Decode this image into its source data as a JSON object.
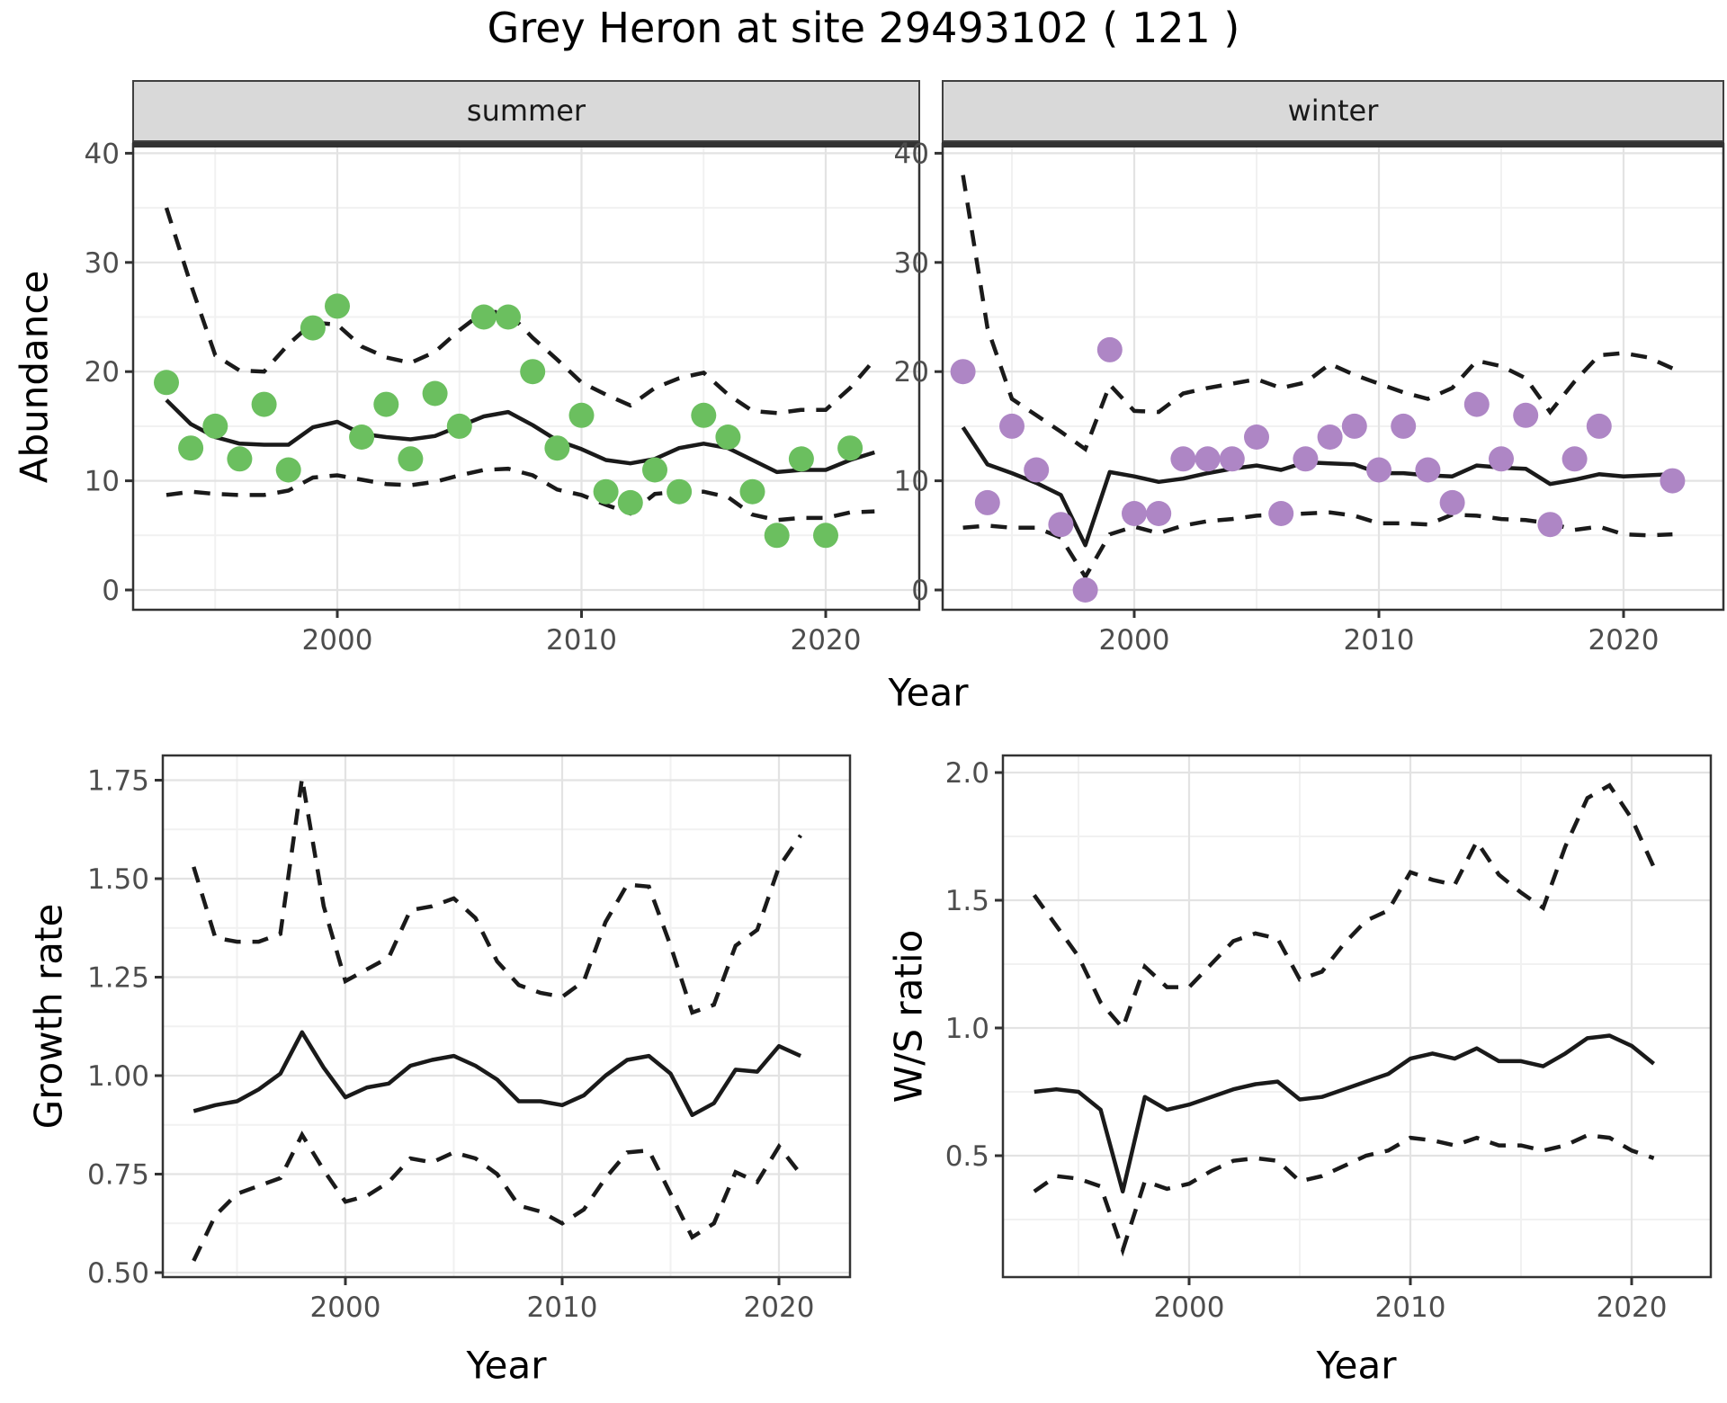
{
  "title": "Grey Heron at site 29493102 ( 121 )",
  "axes": {
    "abundance_label": "Abundance",
    "year_label_top": "Year",
    "year_label_growth": "Year",
    "year_label_ws": "Year",
    "growth_label": "Growth rate",
    "ws_label": "W/S ratio"
  },
  "facets": {
    "summer": "summer",
    "winter": "winter"
  },
  "colors": {
    "summer_points": "#6BBF5F",
    "winter_points": "#AE86C5",
    "line": "#1A1A1A",
    "strip_fill": "#D9D9D9",
    "strip_border": "#404040",
    "panel_border": "#333333",
    "grid_major": "#E3E3E3",
    "grid_minor": "#F1F1F1",
    "tick_text": "#4D4D4D"
  },
  "chart_data": [
    {
      "id": "abundance-summer",
      "type": "scatter",
      "facet": "summer",
      "xlabel": "Year",
      "ylabel": "Abundance",
      "xlim": [
        1991.6,
        2023.8
      ],
      "ylim": [
        -1.8,
        40.9
      ],
      "xticks": [
        2000,
        2010,
        2020
      ],
      "xticks_minor": [
        1995,
        2005,
        2015
      ],
      "yticks": [
        0,
        10,
        20,
        30,
        40
      ],
      "ytick_labels": [
        "0",
        "10",
        "20",
        "30",
        "40"
      ],
      "yticks_minor": [
        5,
        15,
        25,
        35
      ],
      "point_color": "#6BBF5F",
      "points": {
        "years": [
          1993,
          1994,
          1995,
          1996,
          1997,
          1998,
          1999,
          2000,
          2001,
          2002,
          2003,
          2004,
          2005,
          2006,
          2007,
          2008,
          2009,
          2010,
          2011,
          2012,
          2013,
          2014,
          2015,
          2016,
          2017,
          2018,
          2019,
          2020,
          2021
        ],
        "values": [
          19,
          13,
          15,
          12,
          17,
          11,
          24,
          26,
          14,
          17,
          12,
          18,
          15,
          25,
          25,
          20,
          13,
          16,
          9,
          8,
          11,
          9,
          16,
          14,
          9,
          5,
          12,
          5,
          13
        ]
      },
      "lines": {
        "years": [
          1993,
          1994,
          1995,
          1996,
          1997,
          1998,
          1999,
          2000,
          2001,
          2002,
          2003,
          2004,
          2005,
          2006,
          2007,
          2008,
          2009,
          2010,
          2011,
          2012,
          2013,
          2014,
          2015,
          2016,
          2017,
          2018,
          2019,
          2020,
          2021,
          2022
        ],
        "fit": [
          17.4,
          15.2,
          14.0,
          13.4,
          13.3,
          13.3,
          14.9,
          15.4,
          14.3,
          14.0,
          13.8,
          14.1,
          15.0,
          15.9,
          16.3,
          15.1,
          13.7,
          12.9,
          11.9,
          11.6,
          12.0,
          13.0,
          13.4,
          13.0,
          11.9,
          10.8,
          11.0,
          11.0,
          11.9,
          12.6
        ],
        "upper": [
          35.0,
          28.0,
          21.5,
          20.1,
          20.0,
          22.5,
          24.5,
          24.3,
          22.3,
          21.3,
          20.8,
          21.8,
          23.8,
          25.5,
          25.4,
          23.1,
          21.1,
          19.0,
          17.9,
          16.9,
          18.5,
          19.4,
          19.9,
          17.9,
          16.4,
          16.2,
          16.5,
          16.5,
          18.5,
          21.1
        ],
        "lower": [
          8.7,
          9.0,
          8.8,
          8.7,
          8.7,
          9.1,
          10.3,
          10.5,
          10.1,
          9.7,
          9.6,
          9.9,
          10.5,
          11.0,
          11.1,
          10.5,
          9.2,
          8.7,
          7.8,
          7.0,
          8.8,
          9.0,
          9.0,
          8.5,
          6.9,
          6.4,
          6.6,
          6.6,
          7.1,
          7.2
        ]
      }
    },
    {
      "id": "abundance-winter",
      "type": "scatter",
      "facet": "winter",
      "xlabel": "Year",
      "ylabel": "Abundance",
      "xlim": [
        1991.6,
        2023.9
      ],
      "ylim": [
        -1.8,
        40.9
      ],
      "xticks": [
        2000,
        2010,
        2020
      ],
      "xticks_minor": [
        1995,
        2005,
        2015
      ],
      "yticks": [
        0,
        10,
        20,
        30,
        40
      ],
      "ytick_labels": [
        "0",
        "10",
        "20",
        "30",
        "40"
      ],
      "yticks_minor": [
        5,
        15,
        25,
        35
      ],
      "point_color": "#AE86C5",
      "points": {
        "years": [
          1993,
          1994,
          1995,
          1996,
          1997,
          1998,
          1999,
          2000,
          2001,
          2002,
          2003,
          2004,
          2005,
          2006,
          2007,
          2008,
          2009,
          2010,
          2011,
          2012,
          2013,
          2014,
          2015,
          2016,
          2017,
          2018,
          2019,
          2022
        ],
        "values": [
          20,
          8,
          15,
          11,
          6,
          0,
          22,
          7,
          7,
          12,
          12,
          12,
          14,
          7,
          12,
          14,
          15,
          11,
          15,
          11,
          8,
          17,
          12,
          16,
          6,
          12,
          15,
          10
        ]
      },
      "lines": {
        "years": [
          1993,
          1994,
          1995,
          1996,
          1997,
          1998,
          1999,
          2000,
          2001,
          2002,
          2003,
          2004,
          2005,
          2006,
          2007,
          2008,
          2009,
          2010,
          2011,
          2012,
          2013,
          2014,
          2015,
          2016,
          2017,
          2018,
          2019,
          2020,
          2021,
          2022
        ],
        "fit": [
          14.9,
          11.5,
          10.7,
          9.8,
          8.7,
          4.1,
          10.8,
          10.4,
          9.9,
          10.2,
          10.7,
          11.1,
          11.4,
          11.0,
          11.7,
          11.6,
          11.5,
          10.7,
          10.7,
          10.5,
          10.4,
          11.4,
          11.2,
          11.1,
          9.7,
          10.1,
          10.6,
          10.4,
          10.5,
          10.6
        ],
        "upper": [
          38.0,
          24.0,
          17.5,
          16.0,
          14.5,
          12.9,
          18.8,
          16.4,
          16.3,
          18.0,
          18.5,
          18.9,
          19.3,
          18.5,
          19.0,
          20.7,
          19.7,
          18.9,
          18.1,
          17.5,
          18.5,
          21.0,
          20.5,
          19.4,
          16.3,
          19.1,
          21.5,
          21.7,
          21.3,
          20.3
        ],
        "lower": [
          5.7,
          5.9,
          5.7,
          5.7,
          4.8,
          1.2,
          5.1,
          5.8,
          5.2,
          5.9,
          6.3,
          6.5,
          6.8,
          6.9,
          7.0,
          7.1,
          6.8,
          6.1,
          6.1,
          6.0,
          6.9,
          6.8,
          6.5,
          6.4,
          6.1,
          5.5,
          5.8,
          5.1,
          5.0,
          5.1
        ]
      }
    },
    {
      "id": "growth-rate",
      "type": "line",
      "xlabel": "Year",
      "ylabel": "Growth rate",
      "xlim": [
        1991.6,
        2023.3
      ],
      "ylim": [
        0.49,
        1.81
      ],
      "xticks": [
        2000,
        2010,
        2020
      ],
      "xticks_minor": [
        1995,
        2005,
        2015
      ],
      "yticks": [
        0.5,
        0.75,
        1.0,
        1.25,
        1.5,
        1.75
      ],
      "ytick_labels": [
        "0.50",
        "0.75",
        "1.00",
        "1.25",
        "1.50",
        "1.75"
      ],
      "yticks_minor": [
        0.625,
        0.875,
        1.125,
        1.375,
        1.625
      ],
      "lines": {
        "years": [
          1993,
          1994,
          1995,
          1996,
          1997,
          1998,
          1999,
          2000,
          2001,
          2002,
          2003,
          2004,
          2005,
          2006,
          2007,
          2008,
          2009,
          2010,
          2011,
          2012,
          2013,
          2014,
          2015,
          2016,
          2017,
          2018,
          2019,
          2020,
          2021
        ],
        "fit": [
          0.91,
          0.925,
          0.935,
          0.965,
          1.005,
          1.11,
          1.02,
          0.945,
          0.97,
          0.98,
          1.025,
          1.04,
          1.05,
          1.025,
          0.99,
          0.935,
          0.935,
          0.925,
          0.95,
          1.0,
          1.04,
          1.05,
          1.005,
          0.9,
          0.93,
          1.015,
          1.01,
          1.075,
          1.05
        ],
        "upper": [
          1.53,
          1.35,
          1.34,
          1.34,
          1.36,
          1.755,
          1.43,
          1.24,
          1.27,
          1.3,
          1.42,
          1.43,
          1.45,
          1.4,
          1.29,
          1.23,
          1.21,
          1.2,
          1.24,
          1.39,
          1.485,
          1.48,
          1.33,
          1.16,
          1.18,
          1.33,
          1.37,
          1.53,
          1.61
        ],
        "lower": [
          0.53,
          0.645,
          0.7,
          0.72,
          0.74,
          0.85,
          0.76,
          0.68,
          0.695,
          0.73,
          0.79,
          0.78,
          0.805,
          0.79,
          0.75,
          0.67,
          0.655,
          0.625,
          0.66,
          0.74,
          0.805,
          0.81,
          0.7,
          0.59,
          0.625,
          0.755,
          0.73,
          0.82,
          0.75
        ]
      }
    },
    {
      "id": "ws-ratio",
      "type": "line",
      "xlabel": "Year",
      "ylabel": "W/S ratio",
      "xlim": [
        1991.6,
        2023.6
      ],
      "ylim": [
        0.03,
        2.07
      ],
      "xticks": [
        2000,
        2010,
        2020
      ],
      "xticks_minor": [
        1995,
        2005,
        2015
      ],
      "yticks": [
        0.5,
        1.0,
        1.5,
        2.0
      ],
      "ytick_labels": [
        "0.5",
        "1.0",
        "1.5",
        "2.0"
      ],
      "yticks_minor": [
        0.25,
        0.75,
        1.25,
        1.75
      ],
      "lines": {
        "years": [
          1993,
          1994,
          1995,
          1996,
          1997,
          1998,
          1999,
          2000,
          2001,
          2002,
          2003,
          2004,
          2005,
          2006,
          2007,
          2008,
          2009,
          2010,
          2011,
          2012,
          2013,
          2014,
          2015,
          2016,
          2017,
          2018,
          2019,
          2020,
          2021
        ],
        "fit": [
          0.75,
          0.76,
          0.75,
          0.68,
          0.36,
          0.73,
          0.68,
          0.7,
          0.73,
          0.76,
          0.78,
          0.79,
          0.72,
          0.73,
          0.76,
          0.79,
          0.82,
          0.88,
          0.9,
          0.88,
          0.92,
          0.87,
          0.87,
          0.85,
          0.9,
          0.96,
          0.97,
          0.93,
          0.86
        ],
        "upper": [
          1.52,
          1.4,
          1.28,
          1.1,
          1.0,
          1.24,
          1.16,
          1.16,
          1.25,
          1.34,
          1.37,
          1.35,
          1.19,
          1.22,
          1.33,
          1.42,
          1.46,
          1.61,
          1.58,
          1.56,
          1.73,
          1.6,
          1.53,
          1.47,
          1.71,
          1.9,
          1.95,
          1.82,
          1.63
        ],
        "lower": [
          0.36,
          0.42,
          0.41,
          0.38,
          0.13,
          0.4,
          0.37,
          0.39,
          0.44,
          0.48,
          0.49,
          0.48,
          0.4,
          0.42,
          0.46,
          0.5,
          0.52,
          0.57,
          0.56,
          0.54,
          0.57,
          0.54,
          0.54,
          0.52,
          0.54,
          0.58,
          0.57,
          0.52,
          0.49
        ]
      }
    }
  ]
}
